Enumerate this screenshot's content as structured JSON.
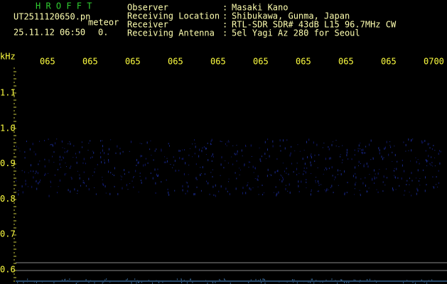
{
  "header": {
    "title": "H R O F F T",
    "file": "UT2511120650.pn",
    "mode": "meteor",
    "datetime": "25.11.12 06:50",
    "status": "0."
  },
  "info": {
    "separator": ":",
    "rows": [
      {
        "label": "Observer",
        "value": "Masaki Kano"
      },
      {
        "label": "Receiving Location",
        "value": "Shibukawa, Gunma, Japan"
      },
      {
        "label": "Receiver",
        "value": "RTL-SDR SDR# 43dB L15 96.7MHz CW"
      },
      {
        "label": "Receiving Antenna",
        "value": "5el Yagi Az 280 for Seoul"
      }
    ]
  },
  "axis": {
    "unit": "kHz",
    "time_labels": [
      "065",
      "065",
      "065",
      "065",
      "065",
      "065",
      "065",
      "065",
      "065",
      "0700"
    ],
    "freq_labels": [
      "1.1",
      "1.0",
      "0.9",
      "0.8",
      "0.7",
      "0.6"
    ]
  }
}
